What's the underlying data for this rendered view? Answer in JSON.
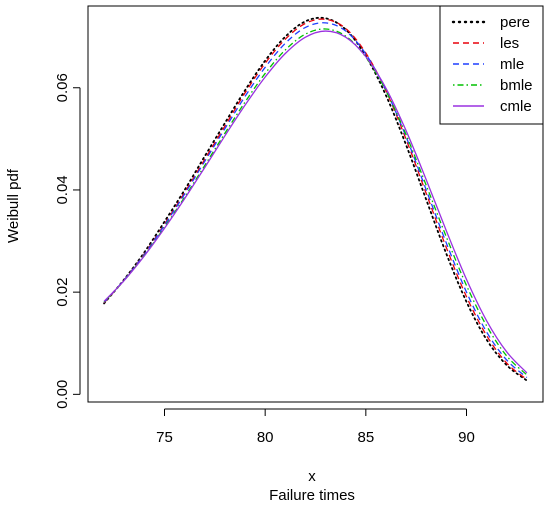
{
  "chart_data": {
    "type": "line",
    "title": "",
    "xlabel_line1": "x",
    "xlabel_line2": "Failure times",
    "ylabel": "Weibull pdf",
    "xlim": [
      72,
      93
    ],
    "ylim": [
      0,
      0.074
    ],
    "x_ticks": [
      75,
      80,
      85,
      90
    ],
    "x_tick_labels": [
      "75",
      "80",
      "85",
      "90"
    ],
    "y_ticks": [
      0.0,
      0.02,
      0.04,
      0.06
    ],
    "y_tick_labels": [
      "0.00",
      "0.02",
      "0.04",
      "0.06"
    ],
    "grid": false,
    "legend_position": "top-right",
    "x": [
      72,
      73,
      74,
      75,
      76,
      77,
      78,
      79,
      80,
      81,
      82,
      83,
      84,
      85,
      86,
      87,
      88,
      89,
      90,
      91,
      92,
      93
    ],
    "series": [
      {
        "name": "pere",
        "color": "#000000",
        "style": "dotted",
        "values": [
          0.0178,
          0.0225,
          0.0278,
          0.0338,
          0.04,
          0.0466,
          0.0531,
          0.0595,
          0.0653,
          0.07,
          0.073,
          0.0736,
          0.0714,
          0.0662,
          0.0585,
          0.0488,
          0.0381,
          0.0275,
          0.0181,
          0.0107,
          0.0057,
          0.0027
        ]
      },
      {
        "name": "les",
        "color": "#e8000b",
        "style": "dashed",
        "values": [
          0.0179,
          0.0224,
          0.0275,
          0.0333,
          0.0395,
          0.046,
          0.0525,
          0.059,
          0.0648,
          0.0695,
          0.0726,
          0.0734,
          0.0716,
          0.0668,
          0.0594,
          0.0499,
          0.0393,
          0.0287,
          0.0191,
          0.0115,
          0.0061,
          0.0029
        ]
      },
      {
        "name": "mle",
        "color": "#1f3fff",
        "style": "dashed",
        "values": [
          0.018,
          0.0224,
          0.0274,
          0.0331,
          0.0392,
          0.0456,
          0.052,
          0.0583,
          0.064,
          0.0687,
          0.0718,
          0.0727,
          0.0711,
          0.0666,
          0.0595,
          0.0504,
          0.04,
          0.0296,
          0.02,
          0.0122,
          0.0067,
          0.0033
        ]
      },
      {
        "name": "bmle",
        "color": "#00c000",
        "style": "dotdash",
        "values": [
          0.0181,
          0.0223,
          0.0272,
          0.0327,
          0.0386,
          0.0448,
          0.0511,
          0.0572,
          0.0628,
          0.0674,
          0.0705,
          0.0715,
          0.0701,
          0.066,
          0.0594,
          0.0508,
          0.0409,
          0.0308,
          0.0213,
          0.0134,
          0.0075,
          0.0038
        ]
      },
      {
        "name": "cmle",
        "color": "#9a30e0",
        "style": "solid",
        "values": [
          0.0182,
          0.0223,
          0.0271,
          0.0325,
          0.0383,
          0.0444,
          0.0506,
          0.0566,
          0.0621,
          0.0667,
          0.0699,
          0.0711,
          0.0699,
          0.0661,
          0.0599,
          0.0516,
          0.042,
          0.032,
          0.0225,
          0.0144,
          0.0083,
          0.0042
        ]
      }
    ]
  }
}
